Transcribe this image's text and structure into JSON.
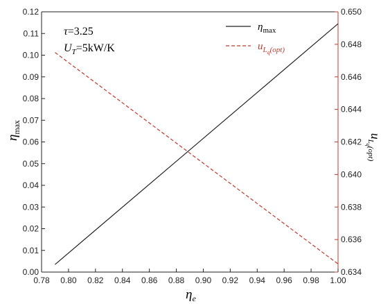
{
  "chart_data": {
    "type": "line",
    "xlabel": "η",
    "xlabel_sub": "e",
    "ylabel_left": "η",
    "ylabel_left_sub": "max",
    "ylabel_right": "u",
    "ylabel_right_sub": "L",
    "ylabel_right_subsub": "q",
    "ylabel_right_tail": "(opt)",
    "xlim": [
      0.78,
      1.0
    ],
    "ylim_left": [
      0.0,
      0.12
    ],
    "ylim_right": [
      0.634,
      0.65
    ],
    "x_ticks": [
      "0.78",
      "0.80",
      "0.82",
      "0.84",
      "0.86",
      "0.88",
      "0.90",
      "0.92",
      "0.94",
      "0.96",
      "0.98",
      "1.00"
    ],
    "y_left_ticks": [
      "0.00",
      "0.01",
      "0.02",
      "0.03",
      "0.04",
      "0.05",
      "0.06",
      "0.07",
      "0.08",
      "0.09",
      "0.10",
      "0.11",
      "0.12"
    ],
    "y_right_ticks": [
      "0.634",
      "0.636",
      "0.638",
      "0.640",
      "0.642",
      "0.644",
      "0.646",
      "0.648",
      "0.650"
    ],
    "grid": false,
    "legend_position": "top-right",
    "annotations": {
      "tau_symbol": "τ",
      "tau_value": "=3.25",
      "ut_symbol": "U",
      "ut_sub": "T",
      "ut_value": "=5kW/K"
    },
    "series": [
      {
        "name": "η",
        "name_sub": "max",
        "axis": "left",
        "style": "solid",
        "color": "#222222",
        "x": [
          0.79,
          1.0
        ],
        "y": [
          0.0035,
          0.1145
        ]
      },
      {
        "name": "u",
        "name_sub": "L",
        "name_subsub": "q",
        "name_tail": "(opt)",
        "axis": "right",
        "style": "dashed",
        "color": "#c0392b",
        "x": [
          0.79,
          1.0
        ],
        "y": [
          0.6475,
          0.6345
        ]
      }
    ]
  },
  "colors": {
    "left_axis": "#222222",
    "right_axis": "#c0392b",
    "background": "#ffffff"
  }
}
